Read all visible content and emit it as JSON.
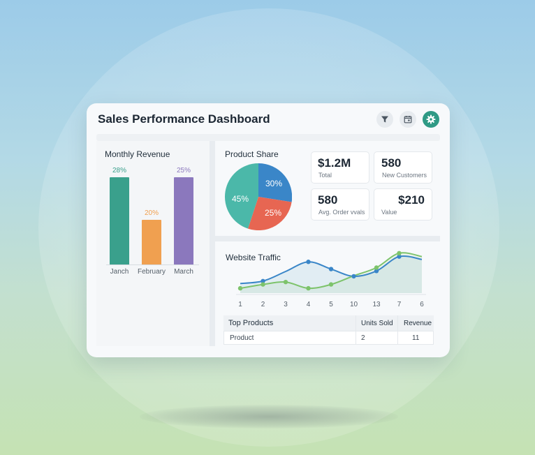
{
  "header": {
    "title": "Sales Performance Dashboard"
  },
  "icons": {
    "filter": "filter-icon",
    "calendar": "calendar-icon",
    "settings": "gear-icon"
  },
  "colors": {
    "teal": "#3aa08c",
    "orange": "#f0a050",
    "purple": "#8b78bd",
    "blue": "#3a86c8",
    "red": "#e76652",
    "green": "#7dc36b",
    "pie_teal": "#4bb8a9"
  },
  "monthly_revenue": {
    "title": "Monthly Revenue",
    "bars": [
      {
        "label": "28%",
        "category": "Janch",
        "value": 28
      },
      {
        "label": "20%",
        "category": "February",
        "value": 20
      },
      {
        "label": "25%",
        "category": "March",
        "value": 25
      }
    ]
  },
  "product_share": {
    "title": "Product Share",
    "slices": [
      {
        "label": "30%",
        "value": 30
      },
      {
        "label": "25%",
        "value": 25
      },
      {
        "label": "45%",
        "value": 45
      }
    ]
  },
  "kpis": [
    {
      "value": "$1.2M",
      "label": "Total"
    },
    {
      "value": "580",
      "label": "New Customers"
    },
    {
      "value": "580",
      "label": "Avg. Order vvals"
    },
    {
      "value": "$210",
      "label": "Value"
    }
  ],
  "website_traffic": {
    "title": "Website Traffic",
    "x_labels": [
      "1",
      "2",
      "3",
      "4",
      "5",
      "10",
      "13",
      "7",
      "6"
    ]
  },
  "top_products": {
    "headers": [
      "Top Products",
      "Units Sold",
      "Revenue"
    ],
    "rows": [
      [
        "Product",
        "2",
        "11"
      ]
    ]
  },
  "chart_data": [
    {
      "type": "bar",
      "title": "Monthly Revenue",
      "categories": [
        "Janch",
        "February",
        "March"
      ],
      "values": [
        28,
        20,
        25
      ]
    },
    {
      "type": "pie",
      "title": "Product Share",
      "labels": [
        "30%",
        "25%",
        "45%"
      ],
      "values": [
        30,
        25,
        45
      ]
    },
    {
      "type": "line",
      "title": "Website Traffic",
      "x": [
        "1",
        "2",
        "3",
        "4",
        "5",
        "10",
        "13",
        "7",
        "6"
      ],
      "series": [
        {
          "values": [
            4.0,
            4.5,
            6.5,
            8.5,
            7.0,
            5.5,
            6.6,
            9.6,
            9.0
          ]
        },
        {
          "values": [
            3.0,
            3.8,
            4.3,
            3.0,
            3.8,
            5.6,
            7.3,
            10.3,
            9.6
          ]
        }
      ]
    }
  ]
}
